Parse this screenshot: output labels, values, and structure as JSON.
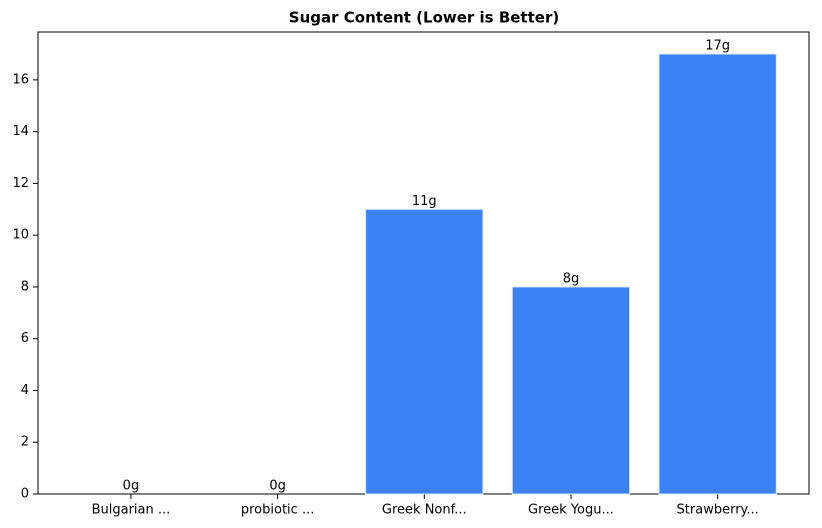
{
  "chart_data": {
    "type": "bar",
    "title": "Sugar Content (Lower is Better)",
    "categories": [
      "Bulgarian ...",
      "probiotic ...",
      "Greek Nonf...",
      "Greek Yogu...",
      "Strawberry..."
    ],
    "values": [
      0,
      0,
      11,
      8,
      17
    ],
    "value_labels": [
      "0g",
      "0g",
      "11g",
      "8g",
      "17g"
    ],
    "color": "#3b82f6",
    "ylim": [
      0,
      17.85
    ],
    "yticks": [
      0,
      2,
      4,
      6,
      8,
      10,
      12,
      14,
      16
    ],
    "grid": false
  }
}
